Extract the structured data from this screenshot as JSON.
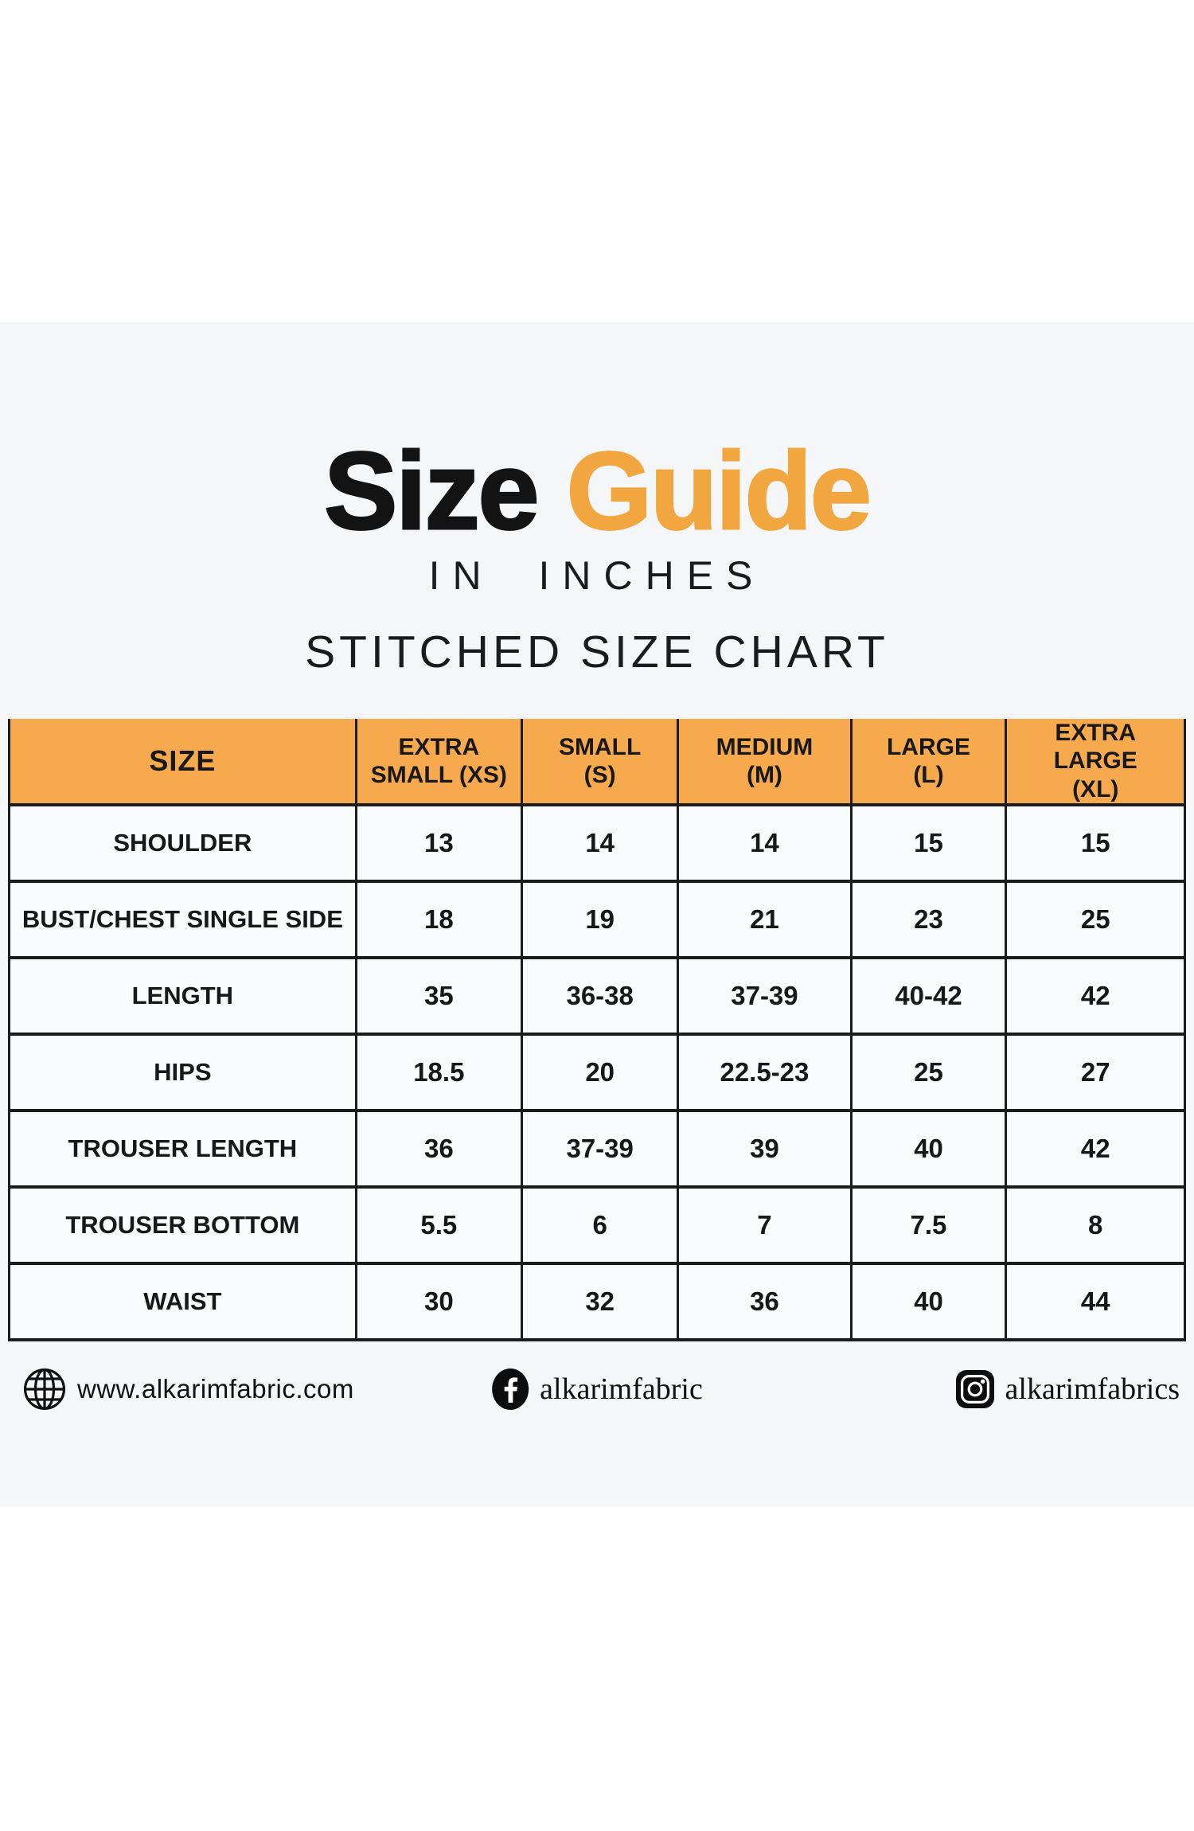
{
  "title": {
    "black_word": "Size",
    "orange_word": "Guide"
  },
  "subtitles": {
    "line1": "IN INCHES",
    "line2": "STITCHED SIZE CHART"
  },
  "chart_data": {
    "type": "table",
    "title": "Size Guide in inches — Stitched Size Chart",
    "columns": [
      "SIZE",
      "EXTRA SMALL (XS)",
      "SMALL (S)",
      "MEDIUM (M)",
      "LARGE (L)",
      "EXTRA LARGE (XL)"
    ],
    "rows": [
      [
        "SHOULDER",
        "13",
        "14",
        "14",
        "15",
        "15"
      ],
      [
        "BUST/CHEST SINGLE SIDE",
        "18",
        "19",
        "21",
        "23",
        "25"
      ],
      [
        "LENGTH",
        "35",
        "36-38",
        "37-39",
        "40-42",
        "42"
      ],
      [
        "HIPS",
        "18.5",
        "20",
        "22.5-23",
        "25",
        "27"
      ],
      [
        "TROUSER LENGTH",
        "36",
        "37-39",
        "39",
        "40",
        "42"
      ],
      [
        "TROUSER BOTTOM",
        "5.5",
        "6",
        "7",
        "7.5",
        "8"
      ],
      [
        "WAIST",
        "30",
        "32",
        "36",
        "40",
        "44"
      ]
    ]
  },
  "table_presentation": {
    "header_lines": [
      [
        "SIZE"
      ],
      [
        "EXTRA",
        "SMALL (XS)"
      ],
      [
        "SMALL",
        "(S)"
      ],
      [
        "MEDIUM",
        "(M)"
      ],
      [
        "LARGE",
        "(L)"
      ],
      [
        "EXTRA LARGE",
        "(XL)"
      ]
    ]
  },
  "footer": {
    "website": "www.alkarimfabric.com",
    "facebook_handle": "alkarimfabric",
    "instagram_handle": "alkarimfabrics"
  },
  "colors": {
    "accent_orange_title": "#f1a63f",
    "header_orange": "#f6aa4d",
    "band_gray": "#f5f6f8",
    "text_black": "#141414",
    "border_black": "#1c1c1c"
  }
}
